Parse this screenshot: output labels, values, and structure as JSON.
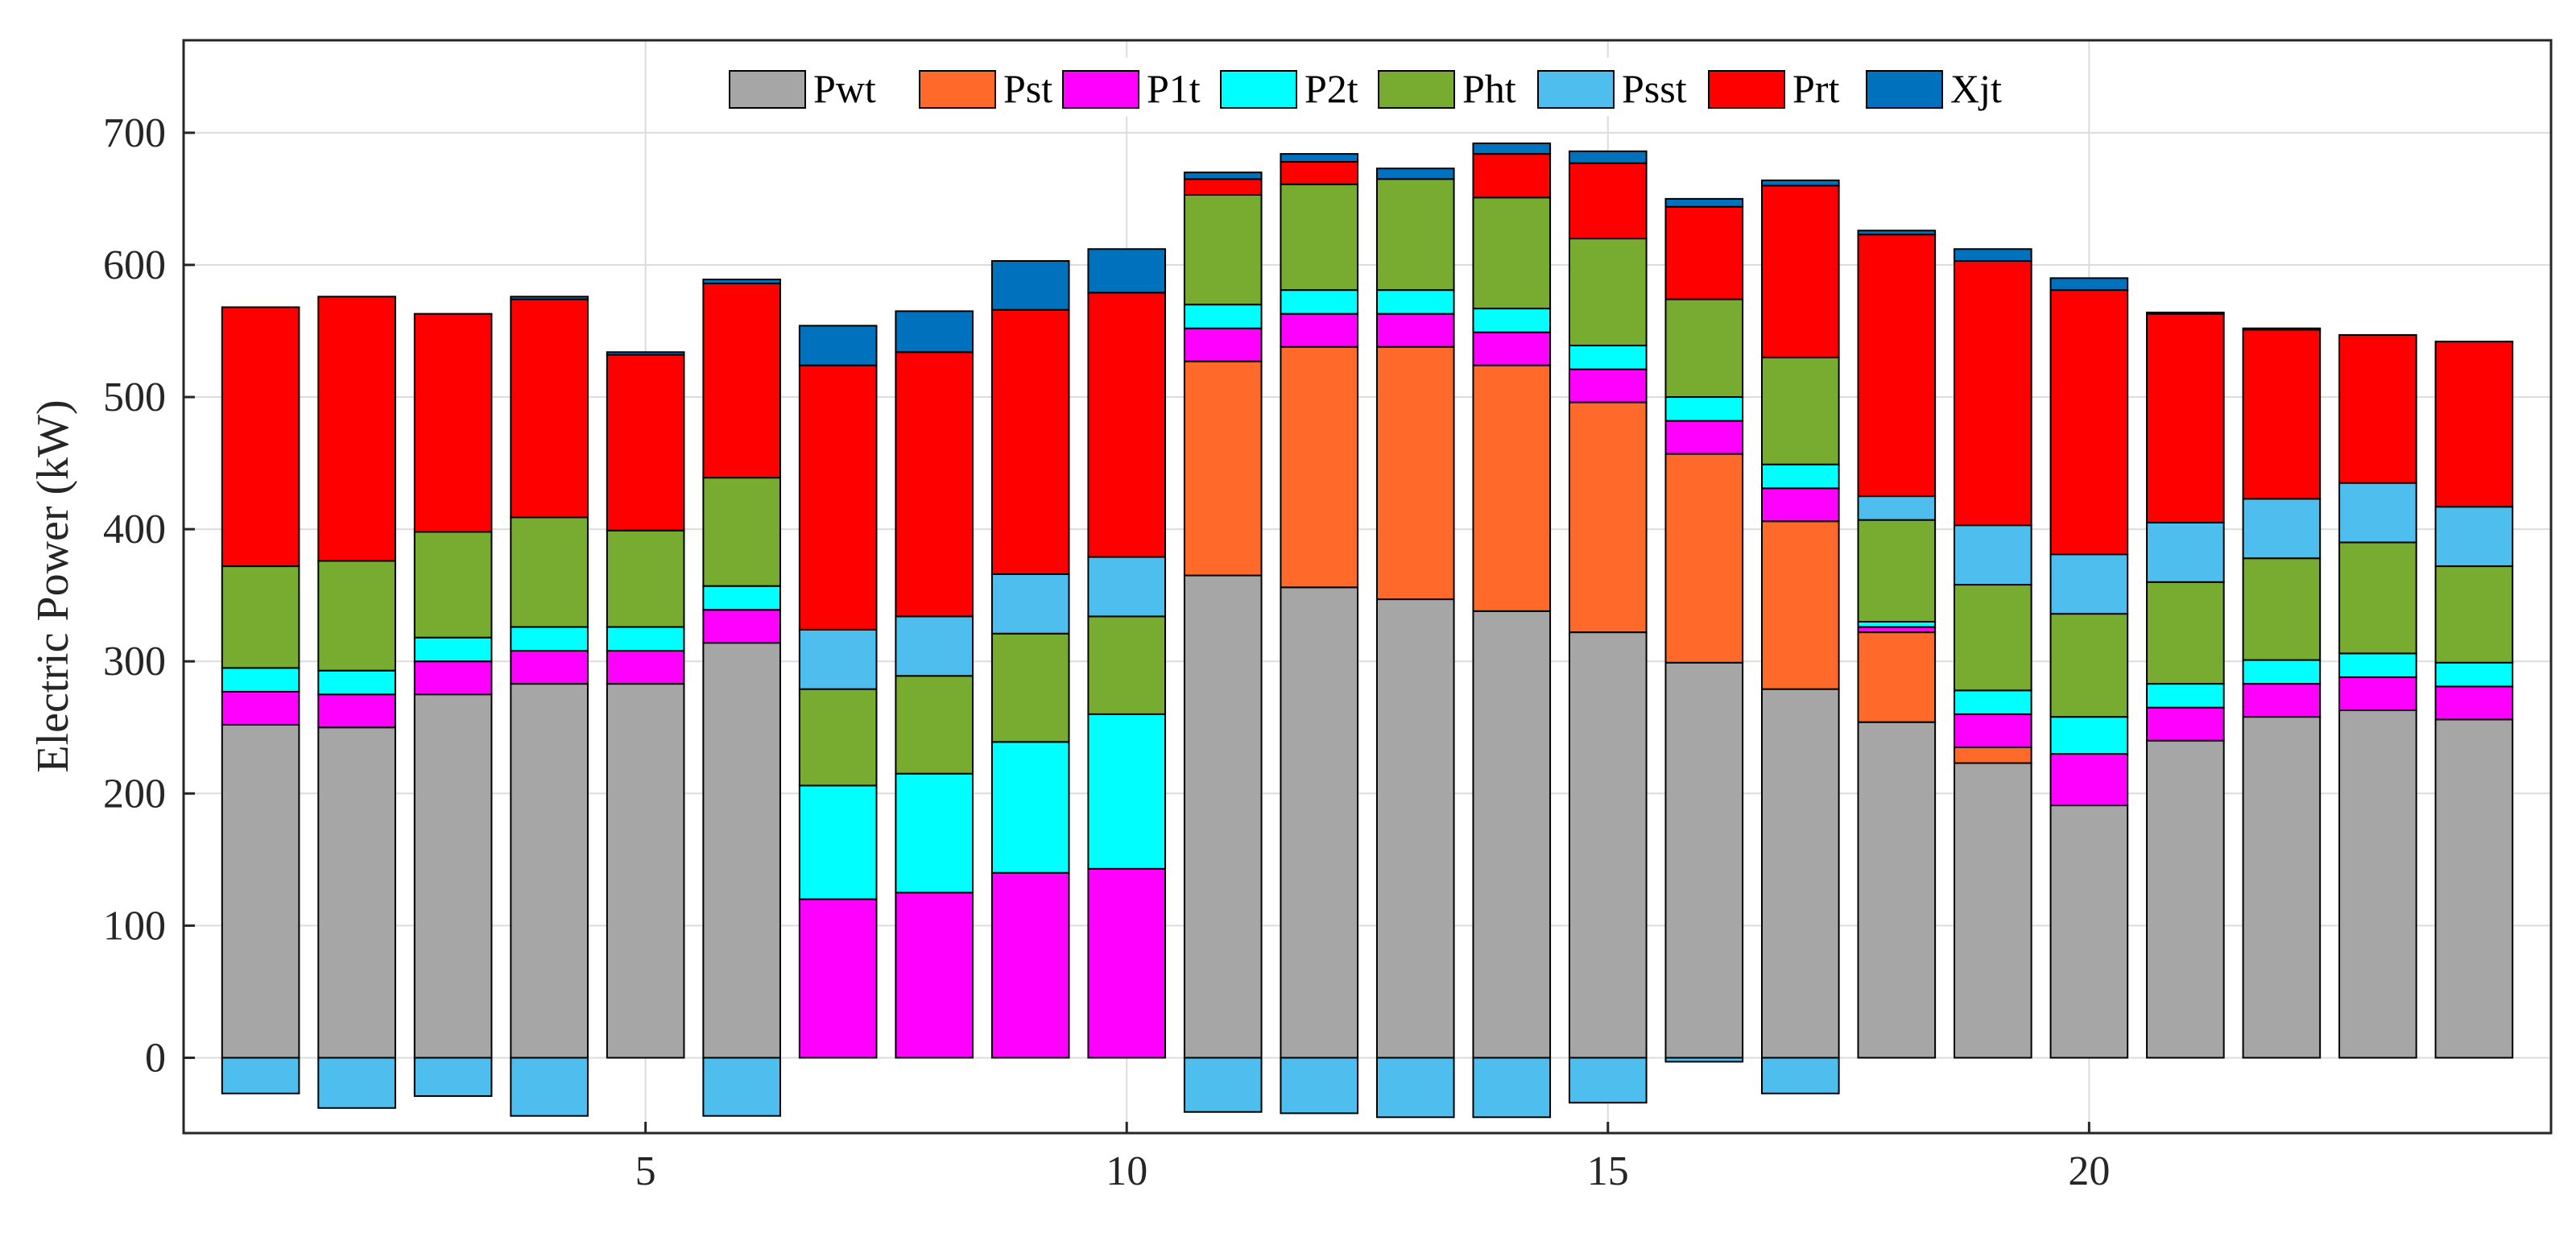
{
  "chart_data": {
    "type": "bar",
    "stacked": true,
    "title": "",
    "xlabel": "",
    "ylabel": "Electric Power (kW)",
    "xlim": [
      0.2,
      24.8
    ],
    "ylim": [
      -57,
      770
    ],
    "categories": [
      1,
      2,
      3,
      4,
      5,
      6,
      7,
      8,
      9,
      10,
      11,
      12,
      13,
      14,
      15,
      16,
      17,
      18,
      19,
      20,
      21,
      22,
      23,
      24
    ],
    "x_ticks": [
      5,
      10,
      15,
      20
    ],
    "y_ticks": [
      0,
      100,
      200,
      300,
      400,
      500,
      600,
      700
    ],
    "grid": true,
    "legend_position": "top-center",
    "series": [
      {
        "name": "Pwt",
        "color": "#a6a6a6",
        "values": [
          252,
          250,
          275,
          283,
          283,
          314,
          0,
          0,
          0,
          0,
          365,
          356,
          347,
          338,
          322,
          299,
          279,
          254,
          223,
          191,
          240,
          258,
          263,
          256
        ]
      },
      {
        "name": "Pst",
        "color": "#ff6929",
        "values": [
          0,
          0,
          0,
          0,
          0,
          0,
          0,
          0,
          0,
          0,
          162,
          182,
          191,
          186,
          174,
          158,
          127,
          68,
          12,
          0,
          0,
          0,
          0,
          0
        ]
      },
      {
        "name": "P1t",
        "color": "#ff00ff",
        "values": [
          25,
          25,
          25,
          25,
          25,
          25,
          120,
          125,
          140,
          143,
          25,
          25,
          25,
          25,
          25,
          25,
          25,
          4,
          25,
          39,
          25,
          25,
          25,
          25
        ]
      },
      {
        "name": "P2t",
        "color": "#00ffff",
        "values": [
          18,
          18,
          18,
          18,
          18,
          18,
          86,
          90,
          99,
          117,
          18,
          18,
          18,
          18,
          18,
          18,
          18,
          4,
          18,
          28,
          18,
          18,
          18,
          18
        ]
      },
      {
        "name": "Pht",
        "color": "#77ac30",
        "values": [
          77,
          83,
          80,
          83,
          73,
          82,
          73,
          74,
          82,
          74,
          83,
          80,
          84,
          84,
          81,
          74,
          81,
          77,
          80,
          78,
          77,
          77,
          84,
          73
        ]
      },
      {
        "name": "Psst",
        "color": "#4dbeee",
        "values": [
          -27,
          -38,
          -29,
          -44,
          0,
          -44,
          45,
          45,
          45,
          45,
          -41,
          -42,
          -45,
          -45,
          -34,
          -3,
          -27,
          18,
          45,
          45,
          45,
          45,
          45,
          45
        ]
      },
      {
        "name": "Prt",
        "color": "#ff0000",
        "values": [
          196,
          200,
          165,
          165,
          133,
          147,
          200,
          200,
          200,
          200,
          12,
          17,
          0,
          33,
          57,
          70,
          130,
          198,
          200,
          200,
          158,
          128,
          112,
          125
        ]
      },
      {
        "name": "Xjt",
        "color": "#0072bd",
        "values": [
          0,
          0,
          0,
          2,
          2,
          3,
          30,
          31,
          37,
          33,
          5,
          6,
          8,
          8,
          9,
          6,
          4,
          3,
          9,
          9,
          1,
          1,
          0,
          0
        ]
      }
    ]
  }
}
